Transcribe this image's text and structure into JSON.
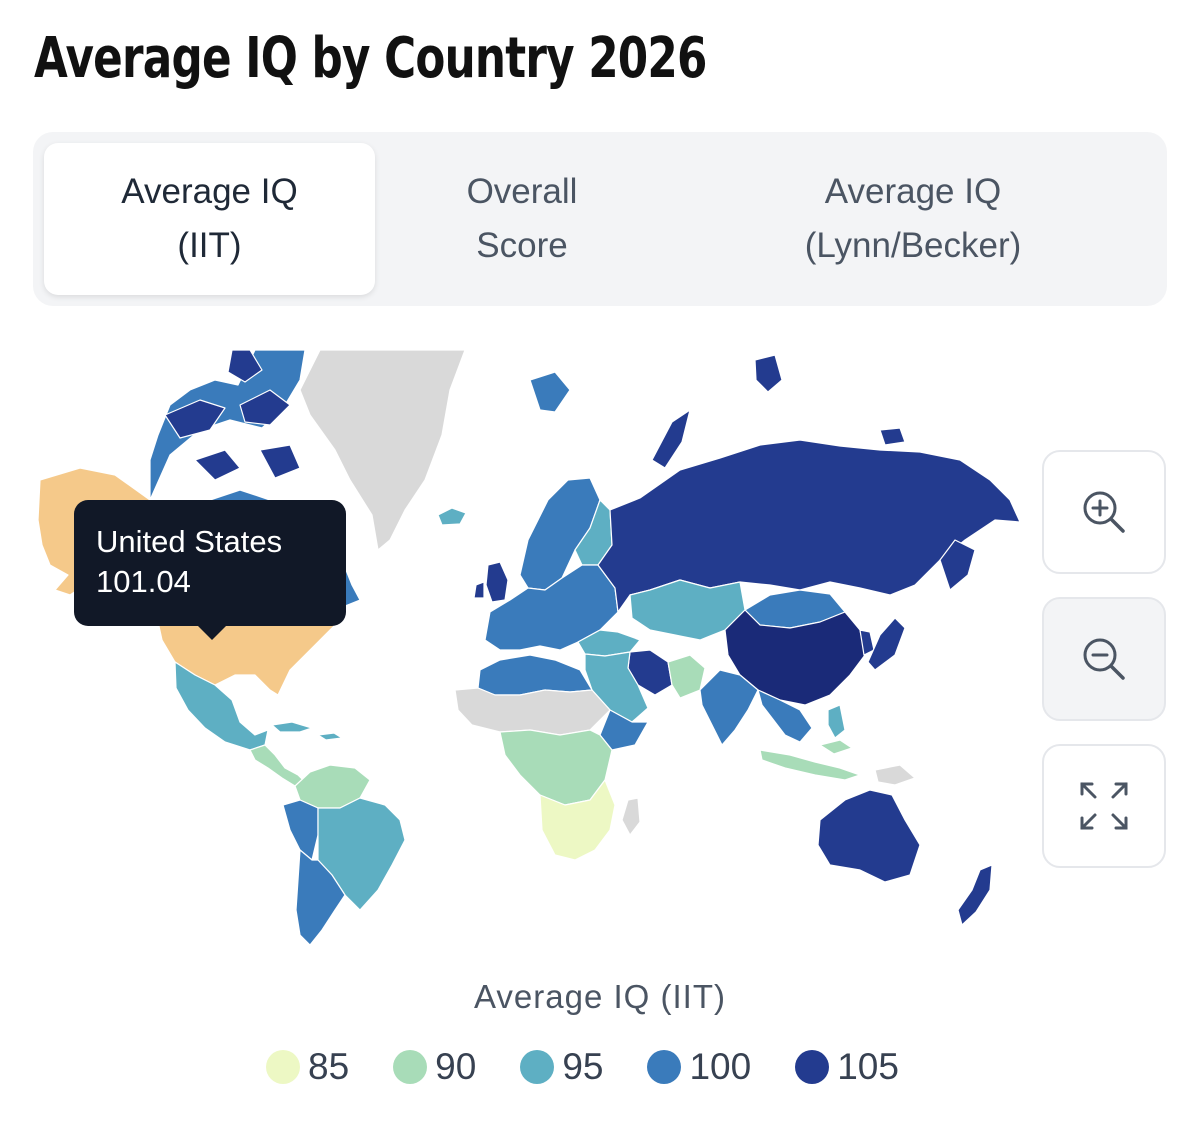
{
  "page_title": "Average IQ by Country 2026",
  "tabs": [
    {
      "line1": "Average IQ",
      "line2": "(IIT)",
      "active": true
    },
    {
      "line1": "Overall",
      "line2": "Score",
      "active": false
    },
    {
      "line1": "Average IQ",
      "line2": "(Lynn/Becker)",
      "active": false
    }
  ],
  "tooltip": {
    "country": "United States",
    "value": "101.04"
  },
  "controls": {
    "zoom_in": "zoom-in-icon",
    "zoom_out": "zoom-out-icon",
    "fullscreen": "expand-icon"
  },
  "legend": {
    "title": "Average IQ (IIT)",
    "items": [
      {
        "label": "85",
        "color": "#edf8c4"
      },
      {
        "label": "90",
        "color": "#a8dcb8"
      },
      {
        "label": "95",
        "color": "#5eafc3"
      },
      {
        "label": "100",
        "color": "#3a7bbb"
      },
      {
        "label": "105",
        "color": "#233b8f"
      }
    ]
  },
  "colors": {
    "highlight": "#f5c98a",
    "no_data": "#d9d9d9",
    "c105": "#233b8f",
    "c100": "#3a7bbb",
    "c95": "#5eafc3",
    "c90": "#a8dcb8",
    "c85": "#edf8c4",
    "c108": "#1a2a78"
  }
}
